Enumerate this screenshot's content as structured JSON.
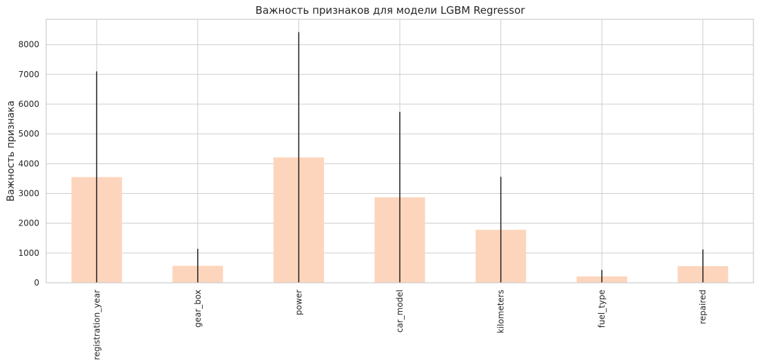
{
  "chart_data": {
    "type": "bar",
    "title": "Важность признаков для модели LGBM Regressor",
    "xlabel": "",
    "ylabel": "Важность признака",
    "categories": [
      "registration_year",
      "gear_box",
      "power",
      "car_model",
      "kilometers",
      "fuel_type",
      "repaired"
    ],
    "values": [
      3550,
      570,
      4210,
      2870,
      1780,
      215,
      560
    ],
    "error": [
      3550,
      570,
      4210,
      2870,
      1780,
      215,
      560
    ],
    "yticks": [
      0,
      1000,
      2000,
      3000,
      4000,
      5000,
      6000,
      7000,
      8000
    ],
    "ylim": [
      0,
      8850
    ],
    "grid": true,
    "legend": "none",
    "colors": {
      "bar": "#fdd5bd",
      "error_bar": "#1c1c1c",
      "grid": "#cccccc",
      "spine": "#cccccc",
      "text": "#262626"
    }
  }
}
